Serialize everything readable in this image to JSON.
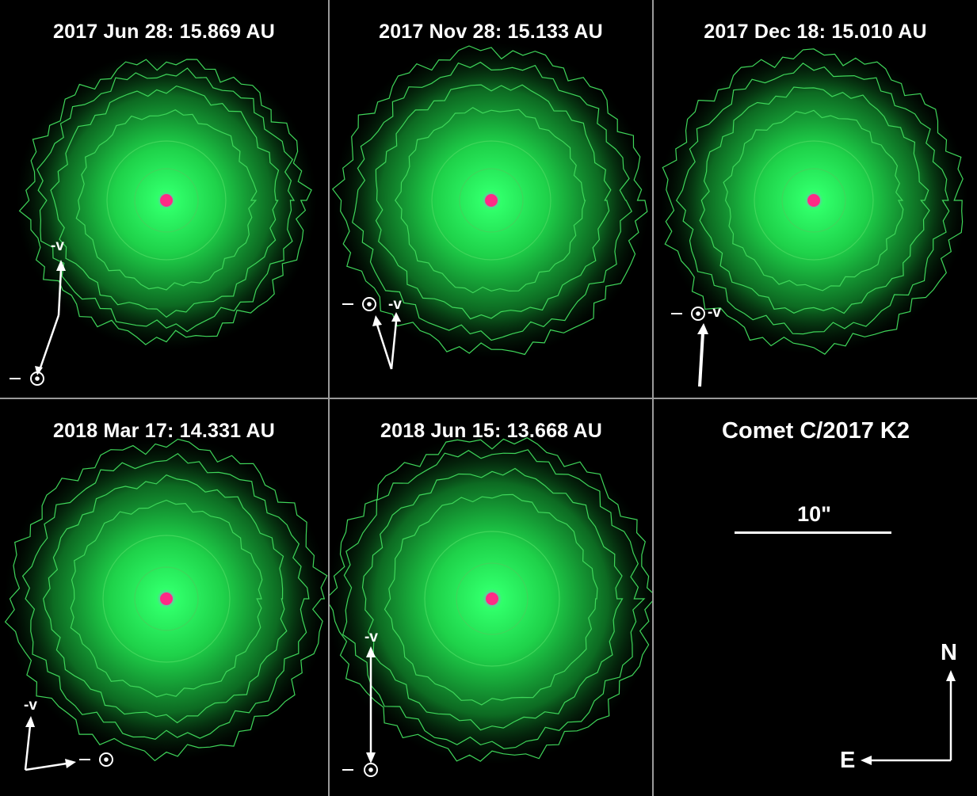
{
  "figure": {
    "panels": [
      {
        "title": "2017 Jun 28: 15.869 AU",
        "v_label": "-v",
        "nucleus_color": "#ff2a86"
      },
      {
        "title": "2017 Nov 28: 15.133 AU",
        "v_label": "-v",
        "nucleus_color": "#ff2a86"
      },
      {
        "title": "2017 Dec 18: 15.010 AU",
        "v_label": "-v",
        "nucleus_color": "#ff2a86"
      },
      {
        "title": "2018 Mar 17: 14.331 AU",
        "v_label": "-v",
        "nucleus_color": "#ff2a86"
      },
      {
        "title": "2018 Jun 15: 13.668 AU",
        "v_label": "-v",
        "nucleus_color": "#ff2a86"
      }
    ],
    "legend": {
      "title": "Comet C/2017 K2",
      "scale_label": "10\"",
      "north_label": "N",
      "east_label": "E"
    },
    "colors": {
      "background": "#000000",
      "coma": "#22d24a",
      "contour": "#3fd65a",
      "nucleus": "#ff2a86",
      "annotation": "#ffffff",
      "divider": "#9a9a9a"
    },
    "icons": [
      "sun-symbol-icon",
      "arrow-icon"
    ]
  }
}
